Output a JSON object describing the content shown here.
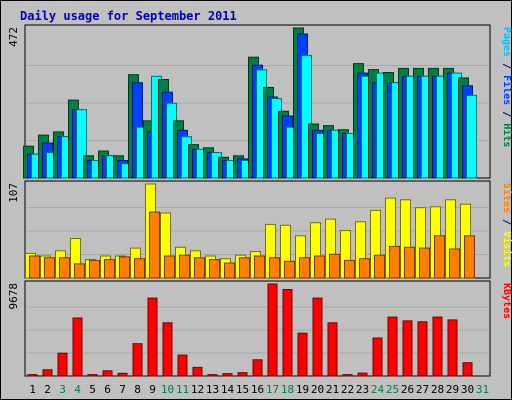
{
  "chart_data": {
    "type": "bar",
    "title": "Daily usage for September 2011",
    "categories": [
      "1",
      "2",
      "3",
      "4",
      "5",
      "6",
      "7",
      "8",
      "9",
      "10",
      "11",
      "12",
      "13",
      "14",
      "15",
      "16",
      "17",
      "18",
      "19",
      "20",
      "21",
      "22",
      "23",
      "24",
      "25",
      "26",
      "27",
      "28",
      "29",
      "30",
      "31"
    ],
    "weekend_days": [
      "3",
      "4",
      "10",
      "11",
      "17",
      "18",
      "24",
      "25",
      "31"
    ],
    "panels": [
      {
        "id": "hits",
        "max_label": "472",
        "ylim": [
          0,
          472
        ],
        "right_label_parts": [
          {
            "text": "Pages",
            "color": "#00c0ff"
          },
          {
            "text": " / ",
            "color": "#000080"
          },
          {
            "text": "Files",
            "color": "#0040ff"
          },
          {
            "text": " / ",
            "color": "#000080"
          },
          {
            "text": "Hits",
            "color": "#008040"
          }
        ],
        "series": [
          {
            "name": "Hits",
            "color": "#008040",
            "values": [
              100,
              135,
              145,
              245,
              70,
              85,
              70,
              325,
              180,
              310,
              180,
              105,
              95,
              65,
              70,
              380,
              285,
              210,
              472,
              170,
              165,
              152,
              360,
              341,
              332,
              345,
              345,
              345,
              345,
              315,
              null
            ]
          },
          {
            "name": "Files",
            "color": "#0040ff",
            "values": [
              75,
              110,
              130,
              215,
              55,
              70,
              55,
              300,
              145,
              270,
              150,
              90,
              80,
              55,
              60,
              355,
              255,
              195,
              453,
              150,
              150,
              140,
              330,
              300,
              300,
              320,
              320,
              320,
              330,
              290,
              null
            ]
          },
          {
            "name": "Pages",
            "color": "#00ffff",
            "values": [
              75,
              80,
              130,
              215,
              55,
              70,
              45,
              160,
              320,
              235,
              130,
              90,
              80,
              55,
              55,
              340,
              250,
              160,
              385,
              140,
              150,
              140,
              320,
              330,
              300,
              320,
              320,
              320,
              330,
              260,
              null
            ]
          }
        ]
      },
      {
        "id": "visits",
        "max_label": "107",
        "ylim": [
          0,
          107
        ],
        "right_label_parts": [
          {
            "text": "Sites",
            "color": "#ff8000"
          },
          {
            "text": " / ",
            "color": "#000080"
          },
          {
            "text": "Visits",
            "color": "#ffff00"
          }
        ],
        "series": [
          {
            "name": "Visits",
            "color": "#ffff00",
            "values": [
              28,
              25,
              31,
              45,
              21,
              25,
              25,
              34,
              107,
              74,
              35,
              31,
              25,
              22,
              26,
              30,
              61,
              60,
              48,
              63,
              67,
              54,
              64,
              77,
              91,
              89,
              80,
              81,
              89,
              84,
              null
            ]
          },
          {
            "name": "Sites",
            "color": "#ff8000",
            "values": [
              25,
              23,
              23,
              16,
              20,
              21,
              24,
              22,
              75,
              25,
              26,
              23,
              21,
              17,
              23,
              25,
              23,
              19,
              23,
              25,
              27,
              20,
              22,
              26,
              36,
              35,
              34,
              48,
              33,
              48,
              null
            ]
          }
        ]
      },
      {
        "id": "kbytes",
        "max_label": "9678",
        "ylim": [
          0,
          9678
        ],
        "right_label_parts": [
          {
            "text": "KBytes",
            "color": "#ff0000"
          }
        ],
        "series": [
          {
            "name": "KBytes",
            "color": "#ff0000",
            "values": [
              150,
              650,
              2400,
              6100,
              150,
              550,
              280,
              3400,
              8200,
              5600,
              2200,
              900,
              150,
              250,
              350,
              1700,
              9678,
              9100,
              4500,
              8200,
              5600,
              150,
              300,
              4000,
              6200,
              5800,
              5700,
              6200,
              5900,
              1400,
              null
            ]
          }
        ]
      }
    ]
  }
}
